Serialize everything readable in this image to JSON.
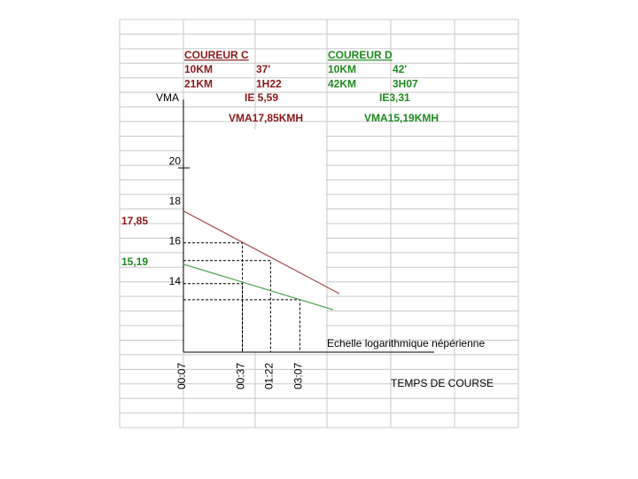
{
  "sheet": {
    "runners": [
      {
        "title": "COUREUR C",
        "color": "#8b1a1a",
        "rows": [
          [
            "10KM",
            "37'"
          ],
          [
            "21KM",
            "1H22"
          ]
        ],
        "ie": "IE  5,59",
        "vma": "VMA17,85KMH"
      },
      {
        "title": "COUREUR D",
        "color": "#1f8a1f",
        "rows": [
          [
            "10KM",
            "42'"
          ],
          [
            "42KM",
            "3H07"
          ]
        ],
        "ie": "IE3,31",
        "vma": "VMA15,19KMH"
      }
    ]
  },
  "chart_data": {
    "type": "line",
    "y_label": "VMA",
    "x_label": "TEMPS DE COURSE",
    "annotation": "Echelle logarithmique népérienne",
    "xscale": "log",
    "xlim": [
      7,
      8300
    ],
    "ylim": [
      10.8,
      23.42
    ],
    "yticks": [
      14,
      16,
      18,
      20
    ],
    "xticks": [
      {
        "value": 7,
        "label": "00:07"
      },
      {
        "value": 37,
        "label": "00:37"
      },
      {
        "value": 82,
        "label": "01:22"
      },
      {
        "value": 187,
        "label": "03:07"
      }
    ],
    "series": [
      {
        "color": "#a85555",
        "label_color": "#8b1a1a",
        "x": [
          7,
          570
        ],
        "values": [
          17.85,
          13.72
        ],
        "value_labels": [
          "17,85",
          null
        ]
      },
      {
        "color": "#55a855",
        "label_color": "#1f8a1f",
        "x": [
          7,
          478
        ],
        "values": [
          15.19,
          12.92
        ],
        "value_labels": [
          "15,19",
          null
        ]
      }
    ],
    "guides": [
      {
        "x": 37,
        "y": 16.26
      },
      {
        "x": 82,
        "y": 15.37
      },
      {
        "x": 37,
        "y": 14.22
      },
      {
        "x": 187,
        "y": 13.42
      }
    ]
  }
}
